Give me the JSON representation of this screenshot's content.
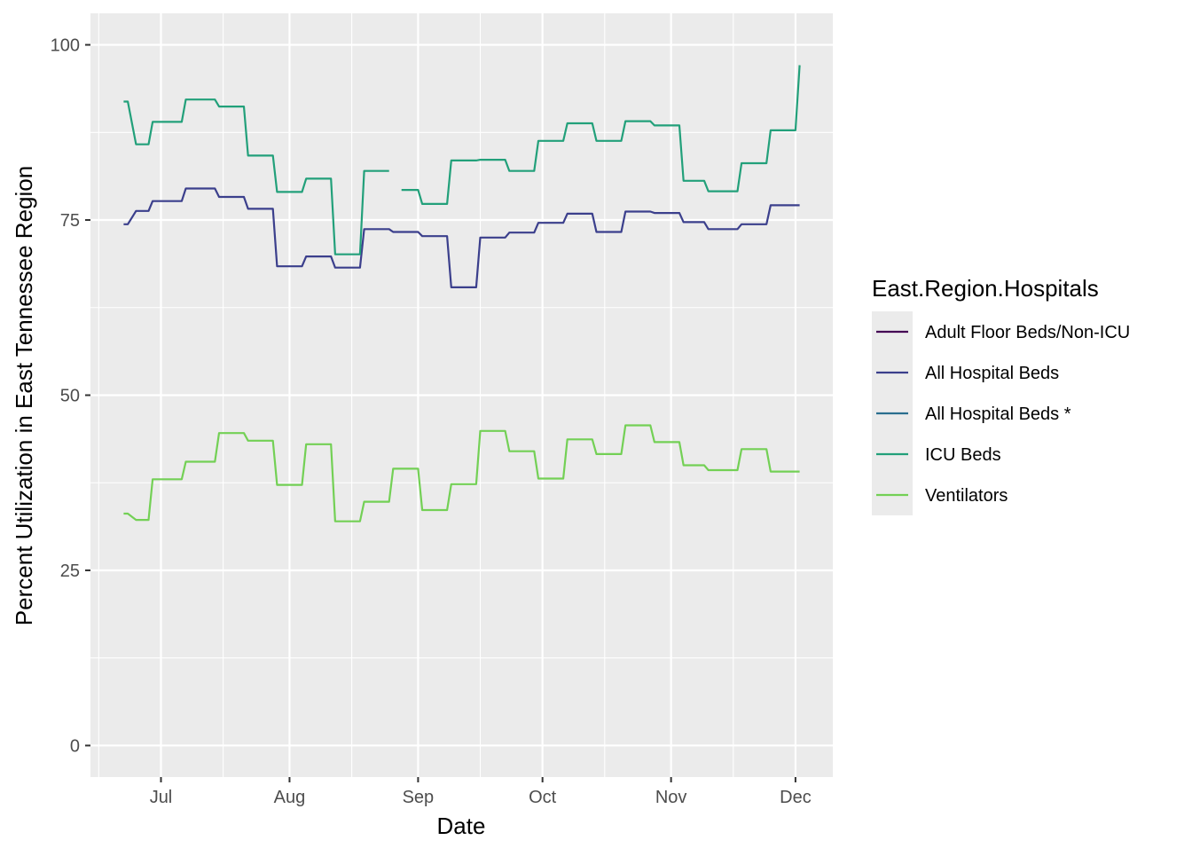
{
  "chart_data": {
    "type": "line",
    "xlabel": "Date",
    "ylabel": "Percent Utilization in East Tennessee Region",
    "ylim": [
      -4.5,
      104.5
    ],
    "xlim": [
      "2020-06-14",
      "2020-12-10"
    ],
    "x_ticks": [
      {
        "date": "2020-07-01",
        "label": "Jul"
      },
      {
        "date": "2020-08-01",
        "label": "Aug"
      },
      {
        "date": "2020-09-01",
        "label": "Sep"
      },
      {
        "date": "2020-10-01",
        "label": "Oct"
      },
      {
        "date": "2020-11-01",
        "label": "Nov"
      },
      {
        "date": "2020-12-01",
        "label": "Dec"
      }
    ],
    "x_minor_ticks": [
      "2020-06-16",
      "2020-07-16",
      "2020-08-16",
      "2020-09-16",
      "2020-10-16",
      "2020-11-16"
    ],
    "y_ticks": [
      0,
      25,
      50,
      75,
      100
    ],
    "y_minor_ticks": [
      12.5,
      37.5,
      62.5,
      87.5
    ],
    "grid": true,
    "legend": {
      "title": "East.Region.Hospitals",
      "position": "right"
    },
    "series": [
      {
        "name": "Adult Floor Beds/Non-ICU",
        "color": "#440154",
        "segments": []
      },
      {
        "name": "All Hospital Beds",
        "color": "#3b3f8c",
        "segments": [
          [
            [
              "2020-06-22",
              74.4
            ],
            [
              "2020-06-23",
              74.4
            ],
            [
              "2020-06-25",
              76.3
            ],
            [
              "2020-06-28",
              76.3
            ],
            [
              "2020-06-29",
              77.7
            ],
            [
              "2020-07-06",
              77.7
            ],
            [
              "2020-07-07",
              79.5
            ],
            [
              "2020-07-14",
              79.5
            ],
            [
              "2020-07-15",
              78.3
            ],
            [
              "2020-07-21",
              78.3
            ],
            [
              "2020-07-22",
              76.6
            ],
            [
              "2020-07-28",
              76.6
            ],
            [
              "2020-07-29",
              68.4
            ],
            [
              "2020-08-04",
              68.4
            ],
            [
              "2020-08-05",
              69.8
            ],
            [
              "2020-08-11",
              69.8
            ],
            [
              "2020-08-12",
              68.2
            ],
            [
              "2020-08-18",
              68.2
            ],
            [
              "2020-08-19",
              73.7
            ],
            [
              "2020-08-25",
              73.7
            ],
            [
              "2020-08-26",
              73.3
            ],
            [
              "2020-09-01",
              73.3
            ],
            [
              "2020-09-02",
              72.7
            ],
            [
              "2020-09-08",
              72.7
            ],
            [
              "2020-09-09",
              65.4
            ],
            [
              "2020-09-15",
              65.4
            ],
            [
              "2020-09-16",
              72.5
            ],
            [
              "2020-09-22",
              72.5
            ],
            [
              "2020-09-23",
              73.2
            ],
            [
              "2020-09-29",
              73.2
            ],
            [
              "2020-09-30",
              74.6
            ],
            [
              "2020-10-06",
              74.6
            ],
            [
              "2020-10-07",
              75.9
            ],
            [
              "2020-10-13",
              75.9
            ],
            [
              "2020-10-14",
              73.3
            ],
            [
              "2020-10-20",
              73.3
            ],
            [
              "2020-10-21",
              76.2
            ],
            [
              "2020-10-27",
              76.2
            ],
            [
              "2020-10-28",
              76.0
            ],
            [
              "2020-11-03",
              76.0
            ],
            [
              "2020-11-04",
              74.7
            ],
            [
              "2020-11-09",
              74.7
            ],
            [
              "2020-11-10",
              73.7
            ],
            [
              "2020-11-17",
              73.7
            ],
            [
              "2020-11-18",
              74.4
            ],
            [
              "2020-11-24",
              74.4
            ],
            [
              "2020-11-25",
              77.1
            ],
            [
              "2020-12-02",
              77.1
            ]
          ]
        ]
      },
      {
        "name": "All Hospital Beds *",
        "color": "#2a6e8e",
        "segments": []
      },
      {
        "name": "ICU Beds",
        "color": "#22a07a",
        "segments": [
          [
            [
              "2020-06-22",
              91.9
            ],
            [
              "2020-06-23",
              91.9
            ],
            [
              "2020-06-25",
              85.8
            ],
            [
              "2020-06-28",
              85.8
            ],
            [
              "2020-06-29",
              89.0
            ],
            [
              "2020-07-06",
              89.0
            ],
            [
              "2020-07-07",
              92.2
            ],
            [
              "2020-07-14",
              92.2
            ],
            [
              "2020-07-15",
              91.2
            ],
            [
              "2020-07-21",
              91.2
            ],
            [
              "2020-07-22",
              84.2
            ],
            [
              "2020-07-28",
              84.2
            ],
            [
              "2020-07-29",
              79.0
            ],
            [
              "2020-08-04",
              79.0
            ],
            [
              "2020-08-05",
              80.9
            ],
            [
              "2020-08-11",
              80.9
            ],
            [
              "2020-08-12",
              70.1
            ],
            [
              "2020-08-18",
              70.1
            ],
            [
              "2020-08-19",
              82.0
            ],
            [
              "2020-08-25",
              82.0
            ]
          ],
          [
            [
              "2020-08-28",
              79.3
            ],
            [
              "2020-09-01",
              79.3
            ],
            [
              "2020-09-02",
              77.3
            ],
            [
              "2020-09-08",
              77.3
            ],
            [
              "2020-09-09",
              83.5
            ],
            [
              "2020-09-15",
              83.5
            ],
            [
              "2020-09-16",
              83.6
            ],
            [
              "2020-09-22",
              83.6
            ],
            [
              "2020-09-23",
              82.0
            ],
            [
              "2020-09-29",
              82.0
            ],
            [
              "2020-09-30",
              86.3
            ],
            [
              "2020-10-06",
              86.3
            ],
            [
              "2020-10-07",
              88.8
            ],
            [
              "2020-10-13",
              88.8
            ],
            [
              "2020-10-14",
              86.3
            ],
            [
              "2020-10-20",
              86.3
            ],
            [
              "2020-10-21",
              89.1
            ],
            [
              "2020-10-27",
              89.1
            ],
            [
              "2020-10-28",
              88.5
            ],
            [
              "2020-11-03",
              88.5
            ],
            [
              "2020-11-04",
              80.6
            ],
            [
              "2020-11-09",
              80.6
            ],
            [
              "2020-11-10",
              79.1
            ],
            [
              "2020-11-17",
              79.1
            ],
            [
              "2020-11-18",
              83.1
            ],
            [
              "2020-11-24",
              83.1
            ],
            [
              "2020-11-25",
              87.8
            ],
            [
              "2020-12-01",
              87.8
            ],
            [
              "2020-12-02",
              97.1
            ]
          ]
        ]
      },
      {
        "name": "Ventilators",
        "color": "#73d055",
        "segments": [
          [
            [
              "2020-06-22",
              33.1
            ],
            [
              "2020-06-23",
              33.1
            ],
            [
              "2020-06-25",
              32.2
            ],
            [
              "2020-06-28",
              32.2
            ],
            [
              "2020-06-29",
              38.0
            ],
            [
              "2020-07-06",
              38.0
            ],
            [
              "2020-07-07",
              40.5
            ],
            [
              "2020-07-14",
              40.5
            ],
            [
              "2020-07-15",
              44.6
            ],
            [
              "2020-07-21",
              44.6
            ],
            [
              "2020-07-22",
              43.5
            ],
            [
              "2020-07-28",
              43.5
            ],
            [
              "2020-07-29",
              37.2
            ],
            [
              "2020-08-04",
              37.2
            ],
            [
              "2020-08-05",
              43.0
            ],
            [
              "2020-08-11",
              43.0
            ],
            [
              "2020-08-12",
              32.0
            ],
            [
              "2020-08-18",
              32.0
            ],
            [
              "2020-08-19",
              34.8
            ],
            [
              "2020-08-25",
              34.8
            ],
            [
              "2020-08-26",
              39.5
            ],
            [
              "2020-09-01",
              39.5
            ],
            [
              "2020-09-02",
              33.6
            ],
            [
              "2020-09-08",
              33.6
            ],
            [
              "2020-09-09",
              37.3
            ],
            [
              "2020-09-15",
              37.3
            ],
            [
              "2020-09-16",
              44.9
            ],
            [
              "2020-09-22",
              44.9
            ],
            [
              "2020-09-23",
              42.0
            ],
            [
              "2020-09-29",
              42.0
            ],
            [
              "2020-09-30",
              38.1
            ],
            [
              "2020-10-06",
              38.1
            ],
            [
              "2020-10-07",
              43.7
            ],
            [
              "2020-10-13",
              43.7
            ],
            [
              "2020-10-14",
              41.6
            ],
            [
              "2020-10-20",
              41.6
            ],
            [
              "2020-10-21",
              45.7
            ],
            [
              "2020-10-27",
              45.7
            ],
            [
              "2020-10-28",
              43.3
            ],
            [
              "2020-11-03",
              43.3
            ],
            [
              "2020-11-04",
              40.0
            ],
            [
              "2020-11-09",
              40.0
            ],
            [
              "2020-11-10",
              39.3
            ],
            [
              "2020-11-17",
              39.3
            ],
            [
              "2020-11-18",
              42.3
            ],
            [
              "2020-11-24",
              42.3
            ],
            [
              "2020-11-25",
              39.1
            ],
            [
              "2020-12-02",
              39.1
            ]
          ]
        ]
      }
    ]
  }
}
